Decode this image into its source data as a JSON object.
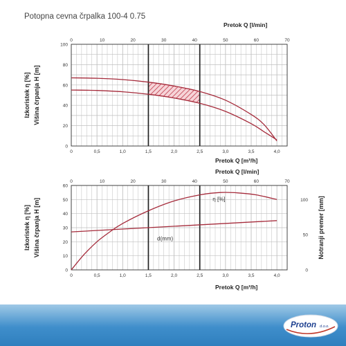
{
  "title": "Potopna cevna črpalka 100-4 0.75",
  "logo": {
    "brand": "Proton",
    "suffix": "d.o.o."
  },
  "colors": {
    "curve": "#a52a3a",
    "hatch": "#c0394b",
    "grid": "#bfbfbf",
    "axis": "#333333",
    "footer": "#3f8ecb"
  },
  "chart_data": [
    {
      "type": "line",
      "xlim": [
        0,
        4.2
      ],
      "x_ticks": [
        "0",
        "0,5",
        "1,0",
        "1,5",
        "2,0",
        "2,5",
        "3,0",
        "3,5",
        "4,0"
      ],
      "xlabel": "Pretok  Q [m³/h]",
      "top_axis": {
        "label": "Pretok  Q [l/min]",
        "lim": [
          0,
          70
        ],
        "ticks": [
          "0",
          "10",
          "20",
          "30",
          "40",
          "50",
          "60",
          "70"
        ]
      },
      "ylabel_1": "Izkoristek η [%]",
      "ylabel_2": "Višina črpanja H [m]",
      "ylim": [
        0,
        100
      ],
      "y_ticks": [
        "0",
        "20",
        "40",
        "60",
        "80",
        "100"
      ],
      "operating_range_q": [
        1.5,
        2.5
      ],
      "series": [
        {
          "x": [
            0,
            0.5,
            1.0,
            1.5,
            2.0,
            2.5,
            3.0,
            3.5,
            3.75,
            4.0
          ],
          "y": [
            67,
            66.6,
            65.3,
            62.8,
            59.0,
            53.6,
            45.0,
            31.0,
            21.0,
            5.0
          ]
        },
        {
          "x": [
            0,
            0.5,
            1.0,
            1.5,
            2.0,
            2.5,
            3.0,
            3.5,
            3.75,
            4.0
          ],
          "y": [
            55,
            54.6,
            53.3,
            50.9,
            47.2,
            42.0,
            34.0,
            22.0,
            14.0,
            6.0
          ]
        }
      ]
    },
    {
      "type": "line",
      "xlim": [
        0,
        4.2
      ],
      "x_ticks": [
        "0",
        "0,5",
        "1,0",
        "1,5",
        "2,0",
        "2,5",
        "3,0",
        "3,5",
        "4,0"
      ],
      "xlabel": "Pretok  Q [m³/h]",
      "top_axis": {
        "label": "Pretok  Q [l/min]",
        "lim": [
          0,
          70
        ],
        "ticks": [
          "0",
          "10",
          "20",
          "30",
          "40",
          "50",
          "60",
          "70"
        ]
      },
      "ylabel_1": "Izkoristek η [%]",
      "ylabel_2": "Višina črpanja H [m]",
      "ylim": [
        0,
        60
      ],
      "y_ticks": [
        "0",
        "10",
        "20",
        "30",
        "40",
        "50",
        "60"
      ],
      "y2label": "Notranji premer [mm]",
      "y2lim": [
        0,
        120
      ],
      "y2_ticks": [
        "0",
        "50",
        "100"
      ],
      "operating_range_q": [
        1.5,
        2.5
      ],
      "series": [
        {
          "name": "η [%]",
          "x": [
            0,
            0.25,
            0.5,
            0.75,
            1.0,
            1.5,
            2.0,
            2.5,
            2.9,
            3.25,
            3.6,
            4.0
          ],
          "y": [
            0,
            11,
            20,
            27,
            33,
            42,
            49,
            53.3,
            55,
            54.7,
            53.3,
            50
          ]
        },
        {
          "name": "d(mm)",
          "x": [
            0,
            4.0
          ],
          "y": [
            27,
            35
          ]
        }
      ]
    }
  ]
}
